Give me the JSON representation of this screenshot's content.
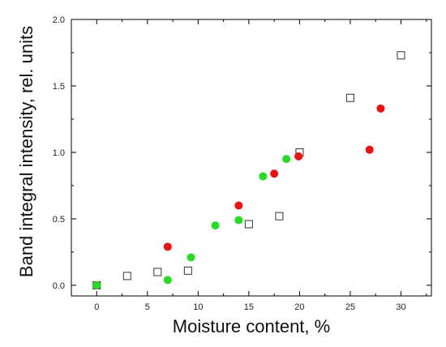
{
  "chart_data": {
    "type": "scatter",
    "xlabel": "Moisture content, %",
    "ylabel": "Band integral intensity, rel. units",
    "xlim": [
      -2.5,
      33
    ],
    "ylim": [
      -0.08,
      2.0
    ],
    "x_ticks": [
      0,
      5,
      10,
      15,
      20,
      25,
      30
    ],
    "x_tick_labels": [
      "0",
      "5",
      "10",
      "15",
      "20",
      "25",
      "30"
    ],
    "y_ticks": [
      0.0,
      0.5,
      1.0,
      1.5,
      2.0
    ],
    "y_tick_labels": [
      "0.0",
      "0.5",
      "1.0",
      "1.5",
      "2.0"
    ],
    "grid": false,
    "series": [
      {
        "marker": "open-square",
        "color": "#333333",
        "points": [
          [
            0,
            0.0
          ],
          [
            3,
            0.07
          ],
          [
            6,
            0.1
          ],
          [
            9,
            0.11
          ],
          [
            15,
            0.46
          ],
          [
            18,
            0.52
          ],
          [
            20,
            1.0
          ],
          [
            25,
            1.41
          ],
          [
            30,
            1.73
          ]
        ]
      },
      {
        "marker": "filled-circle",
        "color": "#ee1111",
        "points": [
          [
            0,
            0.0
          ],
          [
            7,
            0.29
          ],
          [
            14,
            0.6
          ],
          [
            17.5,
            0.84
          ],
          [
            19.9,
            0.97
          ],
          [
            26.9,
            1.02
          ],
          [
            28,
            1.33
          ]
        ]
      },
      {
        "marker": "filled-circle",
        "color": "#22dd22",
        "points": [
          [
            0,
            0.0
          ],
          [
            7,
            0.04
          ],
          [
            9.3,
            0.21
          ],
          [
            11.7,
            0.45
          ],
          [
            14,
            0.49
          ],
          [
            16.4,
            0.82
          ],
          [
            18.7,
            0.95
          ]
        ]
      }
    ]
  }
}
